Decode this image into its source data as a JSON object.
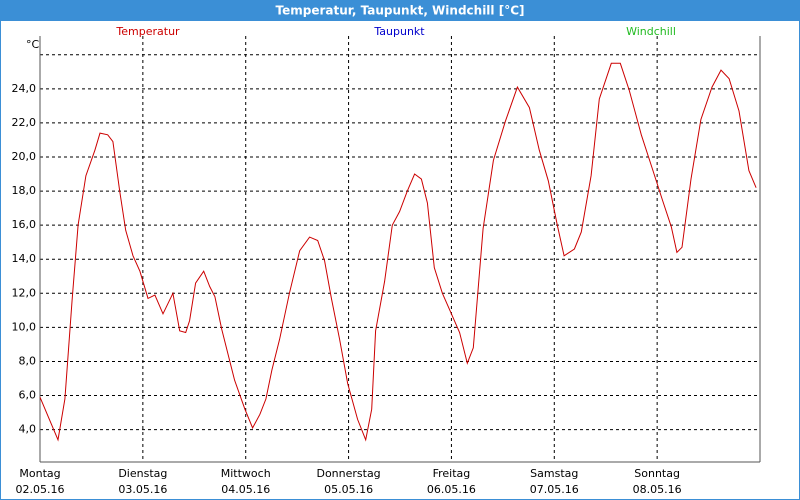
{
  "chart_data": {
    "type": "line",
    "title": "Temperatur, Taupunkt, Windchill [°C]",
    "y_unit": "°C",
    "x": [
      0,
      4.2,
      5.8,
      7.5,
      8.9,
      10.7,
      12.8,
      14.0,
      15.8,
      17.0,
      18.6,
      20.0,
      21.7,
      23.3,
      25.2,
      26.8,
      28.7,
      31.0,
      32.6,
      34.0,
      34.9,
      36.3,
      38.2,
      39.6,
      40.8,
      42.4,
      45.4,
      47.8,
      49.6,
      51.3,
      52.7,
      54.1,
      55.9,
      58.2,
      60.6,
      62.9,
      64.8,
      66.4,
      68.0,
      69.9,
      71.8,
      74.1,
      76.0,
      77.4,
      78.3,
      80.4,
      82.2,
      83.9,
      85.7,
      87.4,
      89.0,
      90.4,
      92.0,
      93.9,
      96.0,
      97.9,
      99.7,
      101.1,
      103.4,
      105.8,
      108.6,
      111.4,
      114.2,
      116.5,
      118.6,
      120.7,
      122.3,
      124.7,
      126.3,
      128.6,
      130.5,
      133.3,
      135.4,
      137.5,
      140.3,
      142.9,
      145.2,
      147.3,
      148.6,
      149.8,
      151.9,
      154.2,
      156.8,
      158.9,
      160.8,
      163.1,
      165.4,
      167.1
    ],
    "series": [
      {
        "name": "Temperatur",
        "color": "#cc0000",
        "values": [
          5.9,
          3.4,
          5.8,
          11.6,
          16.0,
          18.9,
          20.4,
          21.4,
          21.3,
          20.9,
          18.0,
          15.7,
          14.2,
          13.3,
          11.7,
          11.9,
          10.8,
          12.0,
          9.8,
          9.7,
          10.4,
          12.6,
          13.3,
          12.4,
          11.8,
          9.9,
          6.9,
          5.2,
          4.1,
          4.9,
          5.8,
          7.5,
          9.3,
          12.0,
          14.5,
          15.3,
          15.1,
          13.9,
          11.7,
          9.3,
          6.7,
          4.6,
          3.4,
          5.2,
          9.8,
          12.7,
          16.0,
          16.8,
          18.0,
          19.0,
          18.7,
          17.3,
          13.5,
          12.0,
          10.8,
          9.7,
          7.9,
          8.8,
          15.8,
          19.8,
          22.1,
          24.1,
          22.9,
          20.4,
          18.6,
          16.0,
          14.2,
          14.6,
          15.6,
          18.9,
          23.4,
          25.5,
          25.5,
          23.9,
          21.3,
          19.3,
          17.5,
          15.9,
          14.4,
          14.7,
          18.7,
          22.2,
          24.1,
          25.1,
          24.6,
          22.7,
          19.2,
          18.2
        ]
      },
      {
        "name": "Taupunkt",
        "color": "#0000cc",
        "values": [
          null,
          null,
          null,
          null,
          null,
          null,
          null,
          null,
          null,
          null,
          null,
          null,
          null,
          null,
          null,
          null,
          null,
          null,
          null,
          null,
          null,
          null,
          null,
          null,
          null,
          null,
          null,
          null,
          null,
          null,
          null,
          null,
          null,
          null,
          null,
          null,
          null,
          null,
          null,
          null,
          null,
          null,
          null,
          null,
          null,
          null,
          null,
          null,
          null,
          null,
          null,
          null,
          null,
          null,
          null,
          null,
          null,
          null,
          null,
          null,
          null,
          null,
          null,
          null,
          null,
          null,
          null,
          null,
          null,
          null,
          null,
          null,
          null,
          null,
          null,
          null,
          null,
          null,
          null,
          null,
          null,
          null,
          null,
          null,
          null,
          null,
          null,
          null
        ]
      },
      {
        "name": "Windchill",
        "color": "#22bb22",
        "values": [
          null,
          null,
          null,
          null,
          null,
          null,
          null,
          null,
          null,
          null,
          null,
          null,
          null,
          null,
          null,
          null,
          null,
          null,
          null,
          null,
          null,
          null,
          null,
          null,
          null,
          null,
          null,
          null,
          null,
          null,
          null,
          null,
          null,
          null,
          null,
          null,
          null,
          null,
          null,
          null,
          null,
          null,
          null,
          null,
          null,
          null,
          null,
          null,
          null,
          null,
          null,
          null,
          null,
          null,
          null,
          null,
          null,
          null,
          null,
          null,
          null,
          null,
          null,
          null,
          null,
          null,
          null,
          null,
          null,
          null,
          null,
          null,
          null,
          null,
          null,
          null,
          null,
          null,
          null,
          null,
          null,
          null,
          null,
          null,
          null,
          null,
          null,
          null
        ]
      }
    ],
    "xlim": [
      0,
      168
    ],
    "xticks": [
      0,
      24,
      48,
      72,
      96,
      120,
      144,
      168
    ],
    "x_tick_days": [
      "Montag",
      "Dienstag",
      "Mittwoch",
      "Donnerstag",
      "Freitag",
      "Samstag",
      "Sonntag"
    ],
    "x_tick_dates": [
      "02.05.16",
      "03.05.16",
      "04.05.16",
      "05.05.16",
      "06.05.16",
      "07.05.16",
      "08.05.16"
    ],
    "ylim": [
      2.1,
      27.1
    ],
    "yticks": [
      {
        "value": 4,
        "label": "4,0"
      },
      {
        "value": 6,
        "label": "6,0"
      },
      {
        "value": 8,
        "label": "8,0"
      },
      {
        "value": 10,
        "label": "10,0"
      },
      {
        "value": 12,
        "label": "12,0"
      },
      {
        "value": 14,
        "label": "14,0"
      },
      {
        "value": 16,
        "label": "16,0"
      },
      {
        "value": 18,
        "label": "18,0"
      },
      {
        "value": 20,
        "label": "20,0"
      },
      {
        "value": 22,
        "label": "22,0"
      },
      {
        "value": 24,
        "label": "24,0"
      }
    ],
    "gridlines": [
      4,
      6,
      8,
      10,
      12,
      14,
      16,
      18,
      20,
      22,
      24,
      26
    ],
    "grid": true
  }
}
